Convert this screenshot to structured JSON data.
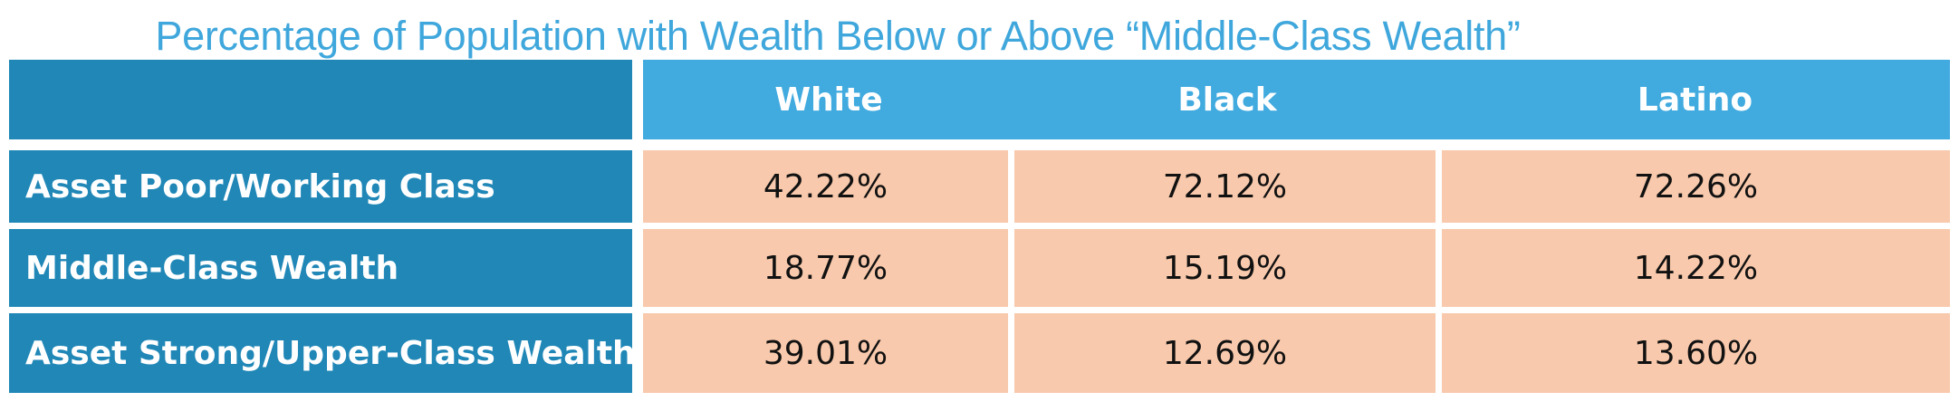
{
  "chart_data": {
    "type": "table",
    "title": "Percentage of Population with Wealth Below or Above “Middle-Class Wealth”",
    "columns": [
      "White",
      "Black",
      "Latino"
    ],
    "rows": [
      {
        "label": "Asset Poor/Working Class",
        "values": [
          "42.22%",
          "72.12%",
          "72.26%"
        ]
      },
      {
        "label": "Middle-Class Wealth",
        "values": [
          "18.77%",
          "15.19%",
          "14.22%"
        ]
      },
      {
        "label": "Asset Strong/Upper-Class Wealth",
        "values": [
          "39.01%",
          "12.69%",
          "13.60%"
        ]
      }
    ]
  },
  "colors": {
    "title": "#3fa7dc",
    "header": "#41aadf",
    "row_label": "#2087b7",
    "value_cell": "#f8c9ac"
  }
}
